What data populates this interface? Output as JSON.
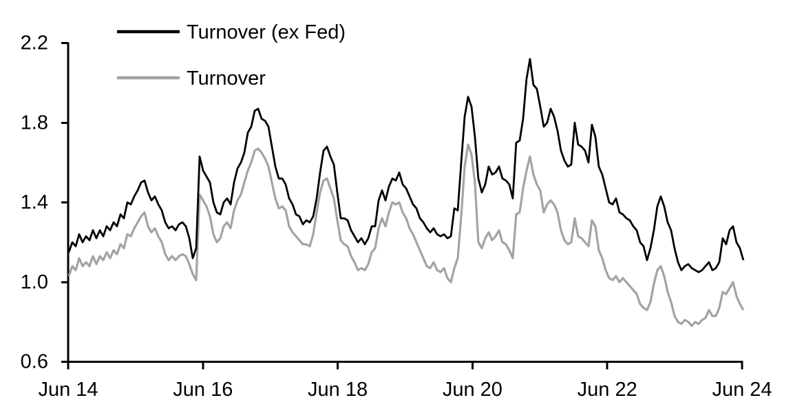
{
  "chart_data": {
    "type": "line",
    "title": "",
    "background": "#ffffff",
    "grid": false,
    "legend_position": "top-left",
    "x_axis": {
      "tick_labels": [
        "Jun 14",
        "Jun 16",
        "Jun 18",
        "Jun 20",
        "Jun 22",
        "Jun 24"
      ],
      "tick_positions_years": [
        0,
        2,
        4,
        6,
        8,
        10
      ],
      "range_years": [
        0,
        10
      ]
    },
    "y_axis": {
      "tick_labels": [
        "0.6",
        "1.0",
        "1.4",
        "1.8",
        "2.2"
      ],
      "tick_values": [
        0.6,
        1.0,
        1.4,
        1.8,
        2.2
      ],
      "range": [
        0.6,
        2.2
      ]
    },
    "sampling": {
      "start_years": 0.01,
      "step_years": 0.05107
    },
    "series": [
      {
        "name": "Turnover (ex Fed)",
        "color": "#000000",
        "stroke_width": 2.8,
        "values": [
          1.15,
          1.2,
          1.18,
          1.24,
          1.2,
          1.23,
          1.21,
          1.26,
          1.22,
          1.26,
          1.23,
          1.28,
          1.26,
          1.3,
          1.28,
          1.34,
          1.32,
          1.4,
          1.39,
          1.43,
          1.46,
          1.5,
          1.51,
          1.45,
          1.41,
          1.43,
          1.39,
          1.36,
          1.3,
          1.27,
          1.28,
          1.26,
          1.29,
          1.3,
          1.28,
          1.22,
          1.12,
          1.17,
          1.63,
          1.56,
          1.53,
          1.5,
          1.4,
          1.35,
          1.34,
          1.4,
          1.42,
          1.39,
          1.5,
          1.57,
          1.6,
          1.65,
          1.75,
          1.78,
          1.86,
          1.87,
          1.82,
          1.81,
          1.78,
          1.68,
          1.58,
          1.52,
          1.52,
          1.49,
          1.42,
          1.39,
          1.34,
          1.33,
          1.29,
          1.31,
          1.3,
          1.33,
          1.42,
          1.55,
          1.66,
          1.68,
          1.63,
          1.59,
          1.45,
          1.32,
          1.32,
          1.31,
          1.26,
          1.23,
          1.2,
          1.22,
          1.19,
          1.22,
          1.28,
          1.28,
          1.41,
          1.46,
          1.41,
          1.48,
          1.52,
          1.51,
          1.55,
          1.49,
          1.47,
          1.43,
          1.39,
          1.37,
          1.32,
          1.3,
          1.27,
          1.25,
          1.27,
          1.24,
          1.23,
          1.24,
          1.22,
          1.23,
          1.37,
          1.36,
          1.6,
          1.83,
          1.93,
          1.88,
          1.73,
          1.52,
          1.45,
          1.49,
          1.58,
          1.54,
          1.55,
          1.58,
          1.52,
          1.51,
          1.49,
          1.42,
          1.7,
          1.71,
          1.82,
          2.02,
          2.12,
          1.99,
          1.97,
          1.88,
          1.78,
          1.8,
          1.87,
          1.83,
          1.76,
          1.66,
          1.61,
          1.58,
          1.59,
          1.8,
          1.69,
          1.68,
          1.66,
          1.6,
          1.79,
          1.73,
          1.58,
          1.54,
          1.47,
          1.4,
          1.39,
          1.42,
          1.35,
          1.34,
          1.32,
          1.31,
          1.28,
          1.26,
          1.2,
          1.18,
          1.11,
          1.17,
          1.26,
          1.38,
          1.43,
          1.38,
          1.3,
          1.26,
          1.17,
          1.1,
          1.06,
          1.08,
          1.09,
          1.07,
          1.06,
          1.05,
          1.06,
          1.08,
          1.1,
          1.06,
          1.07,
          1.1,
          1.22,
          1.19,
          1.26,
          1.28,
          1.2,
          1.17,
          1.11
        ]
      },
      {
        "name": "Turnover",
        "color": "#a3a3a3",
        "stroke_width": 3.2,
        "values": [
          1.03,
          1.08,
          1.06,
          1.12,
          1.08,
          1.1,
          1.08,
          1.13,
          1.09,
          1.13,
          1.11,
          1.15,
          1.12,
          1.16,
          1.14,
          1.19,
          1.17,
          1.24,
          1.23,
          1.27,
          1.3,
          1.33,
          1.35,
          1.28,
          1.25,
          1.27,
          1.23,
          1.2,
          1.14,
          1.11,
          1.13,
          1.11,
          1.13,
          1.14,
          1.13,
          1.09,
          1.04,
          1.01,
          1.44,
          1.41,
          1.38,
          1.33,
          1.24,
          1.2,
          1.22,
          1.28,
          1.3,
          1.27,
          1.36,
          1.41,
          1.44,
          1.5,
          1.56,
          1.6,
          1.66,
          1.67,
          1.65,
          1.62,
          1.58,
          1.5,
          1.42,
          1.37,
          1.38,
          1.36,
          1.28,
          1.25,
          1.23,
          1.21,
          1.19,
          1.19,
          1.18,
          1.24,
          1.35,
          1.45,
          1.51,
          1.52,
          1.47,
          1.42,
          1.31,
          1.21,
          1.19,
          1.18,
          1.13,
          1.1,
          1.06,
          1.07,
          1.06,
          1.09,
          1.15,
          1.17,
          1.27,
          1.32,
          1.28,
          1.35,
          1.4,
          1.39,
          1.4,
          1.35,
          1.32,
          1.27,
          1.24,
          1.2,
          1.16,
          1.12,
          1.08,
          1.07,
          1.1,
          1.06,
          1.05,
          1.07,
          1.02,
          1.0,
          1.07,
          1.12,
          1.33,
          1.58,
          1.69,
          1.64,
          1.5,
          1.2,
          1.17,
          1.22,
          1.25,
          1.21,
          1.23,
          1.26,
          1.2,
          1.19,
          1.16,
          1.12,
          1.34,
          1.35,
          1.47,
          1.56,
          1.63,
          1.54,
          1.49,
          1.46,
          1.35,
          1.39,
          1.41,
          1.39,
          1.35,
          1.26,
          1.21,
          1.19,
          1.2,
          1.32,
          1.23,
          1.22,
          1.2,
          1.18,
          1.31,
          1.28,
          1.16,
          1.12,
          1.06,
          1.02,
          1.01,
          1.03,
          1.0,
          1.02,
          1.0,
          0.98,
          0.96,
          0.94,
          0.89,
          0.87,
          0.86,
          0.9,
          0.99,
          1.06,
          1.08,
          1.03,
          0.95,
          0.9,
          0.83,
          0.8,
          0.79,
          0.81,
          0.8,
          0.78,
          0.8,
          0.79,
          0.81,
          0.82,
          0.86,
          0.83,
          0.83,
          0.87,
          0.95,
          0.94,
          0.97,
          1.0,
          0.93,
          0.89,
          0.86
        ]
      }
    ]
  }
}
